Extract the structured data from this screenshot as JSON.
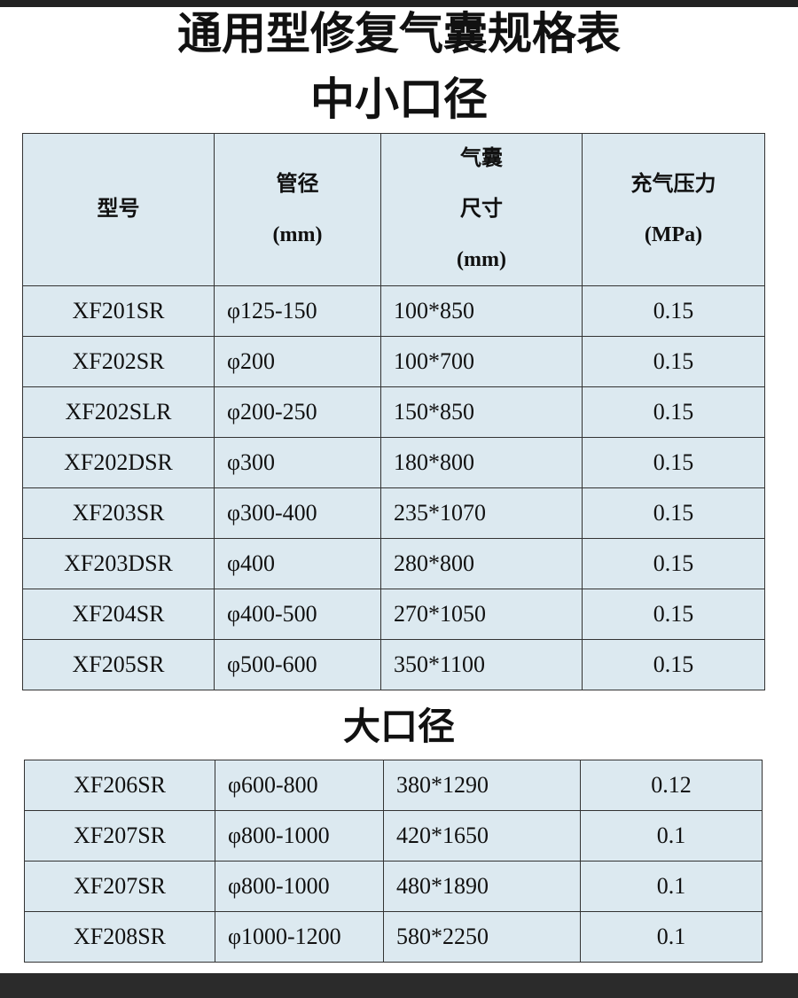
{
  "header": {
    "title": "通用型修复气囊规格表"
  },
  "small": {
    "heading": "中小口径",
    "table": {
      "columns": [
        [
          "型号"
        ],
        [
          "管径",
          "(mm)"
        ],
        [
          "气囊",
          "尺寸",
          "(mm)"
        ],
        [
          "充气压力",
          "(MPa)"
        ]
      ],
      "rows": [
        [
          "XF201SR",
          "φ125-150",
          "100*850",
          "0.15"
        ],
        [
          "XF202SR",
          "φ200",
          "100*700",
          "0.15"
        ],
        [
          "XF202SLR",
          "φ200-250",
          "150*850",
          "0.15"
        ],
        [
          "XF202DSR",
          "φ300",
          "180*800",
          "0.15"
        ],
        [
          "XF203SR",
          "φ300-400",
          "235*1070",
          "0.15"
        ],
        [
          "XF203DSR",
          "φ400",
          "280*800",
          "0.15"
        ],
        [
          "XF204SR",
          "φ400-500",
          "270*1050",
          "0.15"
        ],
        [
          "XF205SR",
          "φ500-600",
          "350*1100",
          "0.15"
        ]
      ]
    }
  },
  "large": {
    "heading": "大口径",
    "table": {
      "rows": [
        [
          "XF206SR",
          "φ600-800",
          "380*1290",
          "0.12"
        ],
        [
          "XF207SR",
          "φ800-1000",
          "420*1650",
          "0.1"
        ],
        [
          "XF207SR",
          "φ800-1000",
          "480*1890",
          "0.1"
        ],
        [
          "XF208SR",
          "φ1000-1200",
          "580*2250",
          "0.1"
        ]
      ]
    }
  }
}
